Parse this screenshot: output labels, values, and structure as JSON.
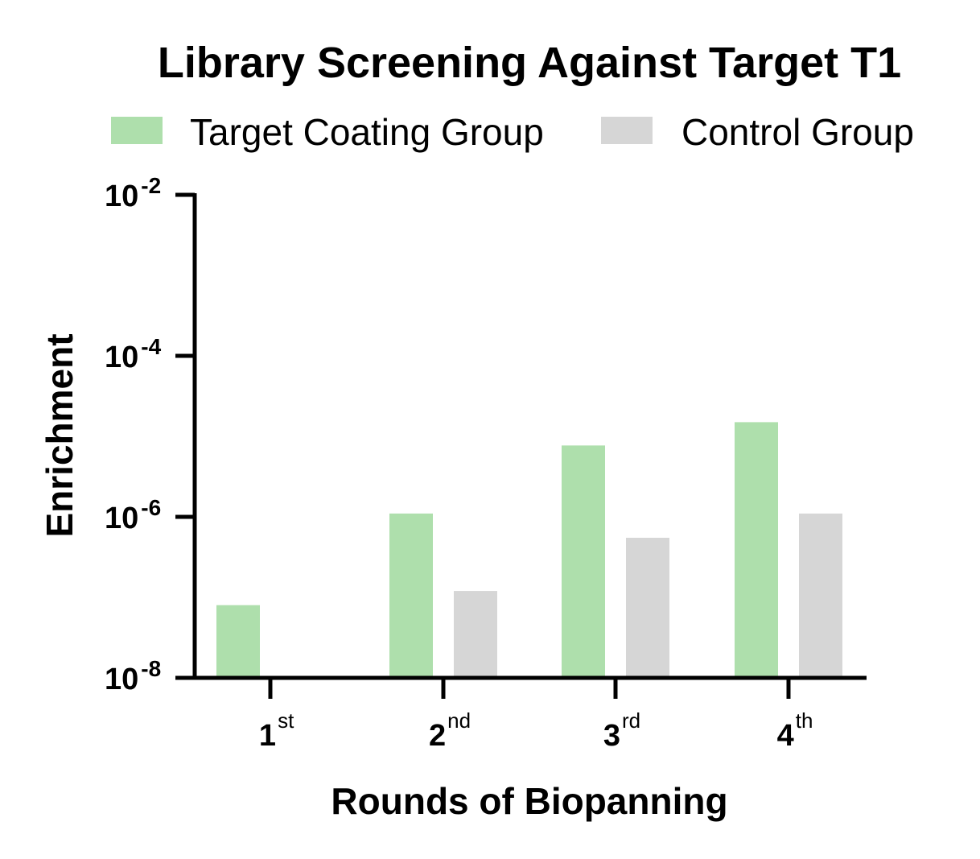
{
  "chart_data": {
    "type": "bar",
    "title": "Library Screening Against Target T1",
    "xlabel": "Rounds of Biopanning",
    "ylabel": "Enrichment",
    "yscale": "log",
    "ylim": [
      1e-08,
      0.01
    ],
    "y_ticks": [
      {
        "base": "10",
        "exp": "-2",
        "value": 0.01
      },
      {
        "base": "10",
        "exp": "-4",
        "value": 0.0001
      },
      {
        "base": "10",
        "exp": "-6",
        "value": 1e-06
      },
      {
        "base": "10",
        "exp": "-8",
        "value": 1e-08
      }
    ],
    "categories": [
      {
        "num": "1",
        "suffix": "st"
      },
      {
        "num": "2",
        "suffix": "nd"
      },
      {
        "num": "3",
        "suffix": "rd"
      },
      {
        "num": "4",
        "suffix": "th"
      }
    ],
    "series": [
      {
        "name": "Target Coating Group",
        "color": "#aedfac",
        "values": [
          8e-08,
          1.1e-06,
          7.7e-06,
          1.5e-05
        ]
      },
      {
        "name": "Control Group",
        "color": "#d6d6d6",
        "values": [
          null,
          1.2e-07,
          5.5e-07,
          1.1e-06
        ]
      }
    ],
    "legend": "top",
    "grid": false
  }
}
